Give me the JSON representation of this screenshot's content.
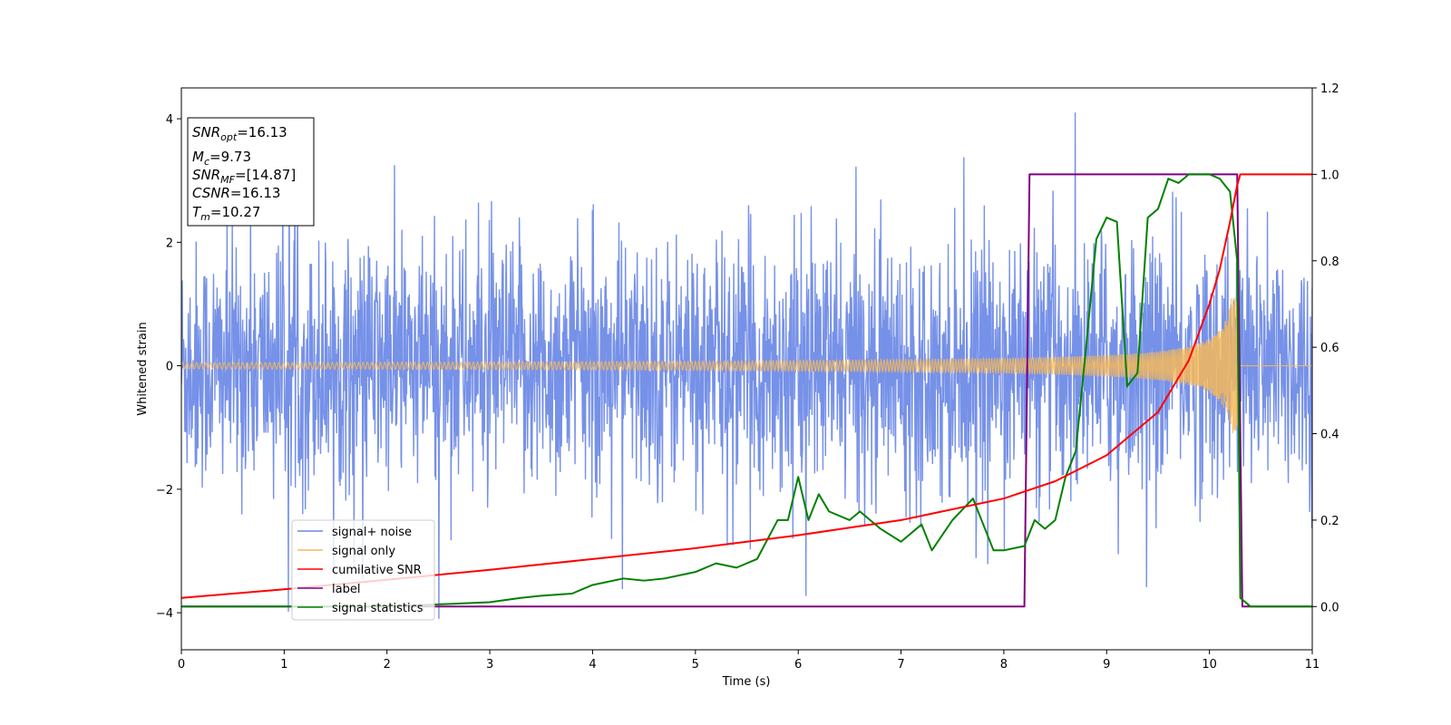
{
  "chart_data": {
    "type": "line",
    "xlabel": "Time (s)",
    "ylabel": "Whitened strain",
    "xlim": [
      0,
      11
    ],
    "ylim_left": [
      -4.6,
      4.5
    ],
    "ylim_right": [
      -0.1,
      1.2
    ],
    "x_ticks": [
      "0",
      "1",
      "2",
      "3",
      "4",
      "5",
      "6",
      "7",
      "8",
      "9",
      "10",
      "11"
    ],
    "y_ticks_left": [
      "−4",
      "−2",
      "0",
      "2",
      "4"
    ],
    "y_ticks_right": [
      "0.0",
      "0.2",
      "0.4",
      "0.6",
      "0.8",
      "1.0",
      "1.2"
    ],
    "info_box": {
      "line1": {
        "base": "SNR",
        "sub": "opt",
        "value": "=16.13"
      },
      "line2": {
        "base": "M",
        "sub": "c",
        "value": "=9.73"
      },
      "line3": {
        "base": "SNR",
        "sub": "MF",
        "value": "=[14.87]"
      },
      "line4": {
        "base": "CSNR",
        "sub": "",
        "value": "=16.13"
      },
      "line5": {
        "base": "T",
        "sub": "m",
        "value": "=10.27"
      }
    },
    "legend": {
      "placement": "lower-left",
      "entries": [
        "signal+ noise",
        "signal only",
        "cumilative SNR",
        "label",
        "signal statistics"
      ]
    },
    "series": [
      {
        "name": "signal+ noise",
        "axis": "left",
        "color": "#6a88e6",
        "kind": "noise",
        "typical_amplitude": 1.6,
        "peak_amplitude": 4.1
      },
      {
        "name": "signal only",
        "axis": "left",
        "color": "#f5b75a",
        "kind": "chirp",
        "start_amplitude": 0.05,
        "end_amplitude": 1.1,
        "merger_time": 10.27
      },
      {
        "name": "cumilative SNR",
        "axis": "right",
        "color": "#ff0000",
        "x": [
          0,
          1,
          2,
          3,
          4,
          5,
          6,
          7,
          8,
          8.5,
          9,
          9.5,
          9.8,
          10,
          10.1,
          10.2,
          10.27,
          10.3,
          11
        ],
        "y": [
          0.02,
          0.04,
          0.062,
          0.085,
          0.11,
          0.135,
          0.165,
          0.2,
          0.25,
          0.29,
          0.35,
          0.45,
          0.57,
          0.7,
          0.78,
          0.89,
          0.975,
          1.0,
          1.0
        ]
      },
      {
        "name": "label",
        "axis": "right",
        "color": "#800080",
        "x": [
          0,
          8.2,
          8.25,
          10.27,
          10.32,
          11
        ],
        "y": [
          0,
          0,
          1,
          1,
          0,
          0
        ]
      },
      {
        "name": "signal statistics",
        "axis": "right",
        "color": "#008000",
        "x": [
          0,
          1,
          2,
          2.5,
          3,
          3.3,
          3.5,
          3.8,
          4,
          4.3,
          4.5,
          4.7,
          5,
          5.2,
          5.4,
          5.6,
          5.8,
          5.9,
          6,
          6.1,
          6.2,
          6.3,
          6.5,
          6.6,
          6.8,
          7,
          7.2,
          7.3,
          7.5,
          7.7,
          7.9,
          8,
          8.2,
          8.3,
          8.4,
          8.5,
          8.6,
          8.7,
          8.8,
          8.9,
          9,
          9.1,
          9.2,
          9.3,
          9.4,
          9.5,
          9.6,
          9.7,
          9.8,
          10,
          10.1,
          10.2,
          10.27,
          10.3,
          10.4,
          11
        ],
        "y": [
          0,
          0,
          0,
          0.005,
          0.01,
          0.02,
          0.025,
          0.03,
          0.05,
          0.065,
          0.06,
          0.065,
          0.08,
          0.1,
          0.09,
          0.11,
          0.2,
          0.2,
          0.3,
          0.2,
          0.26,
          0.22,
          0.2,
          0.22,
          0.18,
          0.15,
          0.19,
          0.13,
          0.2,
          0.25,
          0.13,
          0.13,
          0.14,
          0.2,
          0.18,
          0.2,
          0.3,
          0.36,
          0.6,
          0.85,
          0.9,
          0.89,
          0.51,
          0.54,
          0.9,
          0.92,
          0.99,
          0.98,
          1.0,
          1.0,
          0.99,
          0.96,
          0.8,
          0.02,
          0,
          0
        ]
      }
    ]
  }
}
